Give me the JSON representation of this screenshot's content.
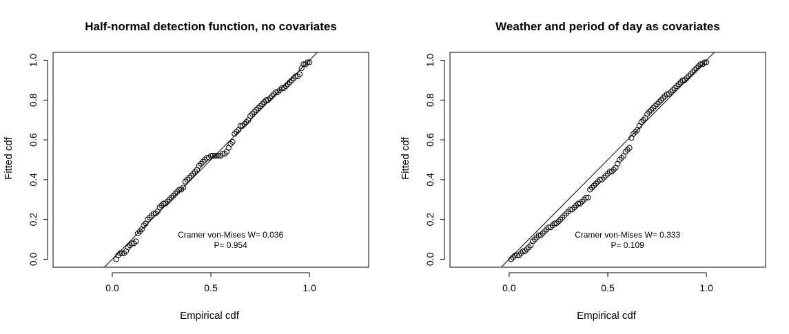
{
  "chart_data": [
    {
      "type": "scatter",
      "title": "Half-normal detection function, no covariates",
      "xlabel": "Empirical cdf",
      "ylabel": "Fitted cdf",
      "xlim": [
        -0.3,
        1.3
      ],
      "ylim": [
        -0.04,
        1.04
      ],
      "xticks": [
        "0.0",
        "0.5",
        "1.0"
      ],
      "yticks": [
        "0.0",
        "0.2",
        "0.4",
        "0.6",
        "0.8",
        "1.0"
      ],
      "reference_line": "y = x",
      "annotation": [
        "Cramer von-Mises W= 0.036",
        "P= 0.954"
      ],
      "series": [
        {
          "marker": "open-circle",
          "points": [
            [
              0.02,
              0.0
            ],
            [
              0.03,
              0.02
            ],
            [
              0.04,
              0.03
            ],
            [
              0.05,
              0.03
            ],
            [
              0.06,
              0.03
            ],
            [
              0.07,
              0.04
            ],
            [
              0.08,
              0.06
            ],
            [
              0.09,
              0.07
            ],
            [
              0.1,
              0.08
            ],
            [
              0.11,
              0.08
            ],
            [
              0.12,
              0.09
            ],
            [
              0.13,
              0.13
            ],
            [
              0.14,
              0.14
            ],
            [
              0.15,
              0.15
            ],
            [
              0.16,
              0.17
            ],
            [
              0.17,
              0.18
            ],
            [
              0.18,
              0.2
            ],
            [
              0.19,
              0.21
            ],
            [
              0.2,
              0.22
            ],
            [
              0.21,
              0.23
            ],
            [
              0.22,
              0.23
            ],
            [
              0.23,
              0.24
            ],
            [
              0.24,
              0.26
            ],
            [
              0.25,
              0.27
            ],
            [
              0.26,
              0.28
            ],
            [
              0.27,
              0.28
            ],
            [
              0.28,
              0.29
            ],
            [
              0.29,
              0.3
            ],
            [
              0.3,
              0.31
            ],
            [
              0.31,
              0.32
            ],
            [
              0.32,
              0.33
            ],
            [
              0.33,
              0.34
            ],
            [
              0.34,
              0.35
            ],
            [
              0.35,
              0.35
            ],
            [
              0.36,
              0.36
            ],
            [
              0.37,
              0.39
            ],
            [
              0.38,
              0.4
            ],
            [
              0.39,
              0.41
            ],
            [
              0.4,
              0.42
            ],
            [
              0.41,
              0.43
            ],
            [
              0.42,
              0.44
            ],
            [
              0.43,
              0.45
            ],
            [
              0.44,
              0.47
            ],
            [
              0.45,
              0.48
            ],
            [
              0.46,
              0.49
            ],
            [
              0.47,
              0.5
            ],
            [
              0.48,
              0.51
            ],
            [
              0.49,
              0.51
            ],
            [
              0.5,
              0.52
            ],
            [
              0.51,
              0.52
            ],
            [
              0.52,
              0.52
            ],
            [
              0.53,
              0.52
            ],
            [
              0.54,
              0.52
            ],
            [
              0.55,
              0.52
            ],
            [
              0.56,
              0.53
            ],
            [
              0.57,
              0.53
            ],
            [
              0.58,
              0.54
            ],
            [
              0.59,
              0.56
            ],
            [
              0.6,
              0.58
            ],
            [
              0.61,
              0.59
            ],
            [
              0.62,
              0.63
            ],
            [
              0.63,
              0.64
            ],
            [
              0.64,
              0.65
            ],
            [
              0.65,
              0.67
            ],
            [
              0.66,
              0.67
            ],
            [
              0.67,
              0.68
            ],
            [
              0.68,
              0.69
            ],
            [
              0.69,
              0.7
            ],
            [
              0.7,
              0.72
            ],
            [
              0.71,
              0.73
            ],
            [
              0.72,
              0.74
            ],
            [
              0.73,
              0.75
            ],
            [
              0.74,
              0.76
            ],
            [
              0.75,
              0.77
            ],
            [
              0.76,
              0.78
            ],
            [
              0.77,
              0.79
            ],
            [
              0.78,
              0.8
            ],
            [
              0.79,
              0.8
            ],
            [
              0.8,
              0.81
            ],
            [
              0.81,
              0.82
            ],
            [
              0.82,
              0.83
            ],
            [
              0.83,
              0.84
            ],
            [
              0.84,
              0.84
            ],
            [
              0.85,
              0.85
            ],
            [
              0.86,
              0.86
            ],
            [
              0.87,
              0.86
            ],
            [
              0.88,
              0.87
            ],
            [
              0.89,
              0.88
            ],
            [
              0.9,
              0.89
            ],
            [
              0.91,
              0.9
            ],
            [
              0.92,
              0.91
            ],
            [
              0.93,
              0.92
            ],
            [
              0.94,
              0.92
            ],
            [
              0.95,
              0.93
            ],
            [
              0.96,
              0.96
            ],
            [
              0.97,
              0.98
            ],
            [
              0.98,
              0.98
            ],
            [
              0.99,
              0.99
            ],
            [
              1.0,
              0.99
            ]
          ]
        }
      ]
    },
    {
      "type": "scatter",
      "title": "Weather and period of day as covariates",
      "xlabel": "Empirical cdf",
      "ylabel": "Fitted cdf",
      "xlim": [
        -0.3,
        1.3
      ],
      "ylim": [
        -0.04,
        1.04
      ],
      "xticks": [
        "0.0",
        "0.5",
        "1.0"
      ],
      "yticks": [
        "0.0",
        "0.2",
        "0.4",
        "0.6",
        "0.8",
        "1.0"
      ],
      "reference_line": "y = x",
      "annotation": [
        "Cramer von-Mises W= 0.333",
        "P= 0.109"
      ],
      "series": [
        {
          "marker": "open-circle",
          "points": [
            [
              0.01,
              0.0
            ],
            [
              0.02,
              0.01
            ],
            [
              0.03,
              0.02
            ],
            [
              0.04,
              0.02
            ],
            [
              0.05,
              0.02
            ],
            [
              0.06,
              0.03
            ],
            [
              0.07,
              0.04
            ],
            [
              0.08,
              0.04
            ],
            [
              0.09,
              0.05
            ],
            [
              0.1,
              0.06
            ],
            [
              0.11,
              0.07
            ],
            [
              0.12,
              0.09
            ],
            [
              0.13,
              0.1
            ],
            [
              0.14,
              0.11
            ],
            [
              0.15,
              0.12
            ],
            [
              0.16,
              0.12
            ],
            [
              0.17,
              0.13
            ],
            [
              0.18,
              0.14
            ],
            [
              0.19,
              0.15
            ],
            [
              0.2,
              0.16
            ],
            [
              0.21,
              0.16
            ],
            [
              0.22,
              0.17
            ],
            [
              0.23,
              0.18
            ],
            [
              0.24,
              0.18
            ],
            [
              0.25,
              0.19
            ],
            [
              0.26,
              0.2
            ],
            [
              0.27,
              0.21
            ],
            [
              0.28,
              0.22
            ],
            [
              0.29,
              0.23
            ],
            [
              0.3,
              0.24
            ],
            [
              0.31,
              0.25
            ],
            [
              0.32,
              0.25
            ],
            [
              0.33,
              0.26
            ],
            [
              0.34,
              0.27
            ],
            [
              0.35,
              0.28
            ],
            [
              0.36,
              0.28
            ],
            [
              0.37,
              0.29
            ],
            [
              0.38,
              0.3
            ],
            [
              0.39,
              0.31
            ],
            [
              0.4,
              0.31
            ],
            [
              0.41,
              0.35
            ],
            [
              0.42,
              0.36
            ],
            [
              0.43,
              0.37
            ],
            [
              0.44,
              0.38
            ],
            [
              0.45,
              0.39
            ],
            [
              0.46,
              0.4
            ],
            [
              0.47,
              0.4
            ],
            [
              0.48,
              0.41
            ],
            [
              0.49,
              0.42
            ],
            [
              0.5,
              0.43
            ],
            [
              0.51,
              0.44
            ],
            [
              0.52,
              0.44
            ],
            [
              0.53,
              0.45
            ],
            [
              0.54,
              0.46
            ],
            [
              0.55,
              0.48
            ],
            [
              0.56,
              0.5
            ],
            [
              0.57,
              0.51
            ],
            [
              0.58,
              0.52
            ],
            [
              0.59,
              0.54
            ],
            [
              0.6,
              0.55
            ],
            [
              0.61,
              0.56
            ],
            [
              0.62,
              0.61
            ],
            [
              0.63,
              0.63
            ],
            [
              0.64,
              0.64
            ],
            [
              0.65,
              0.65
            ],
            [
              0.66,
              0.67
            ],
            [
              0.67,
              0.69
            ],
            [
              0.68,
              0.7
            ],
            [
              0.69,
              0.71
            ],
            [
              0.7,
              0.73
            ],
            [
              0.71,
              0.74
            ],
            [
              0.72,
              0.75
            ],
            [
              0.73,
              0.76
            ],
            [
              0.74,
              0.77
            ],
            [
              0.75,
              0.78
            ],
            [
              0.76,
              0.79
            ],
            [
              0.77,
              0.8
            ],
            [
              0.78,
              0.81
            ],
            [
              0.79,
              0.82
            ],
            [
              0.8,
              0.83
            ],
            [
              0.81,
              0.83
            ],
            [
              0.82,
              0.84
            ],
            [
              0.83,
              0.85
            ],
            [
              0.84,
              0.86
            ],
            [
              0.85,
              0.87
            ],
            [
              0.86,
              0.88
            ],
            [
              0.87,
              0.89
            ],
            [
              0.88,
              0.9
            ],
            [
              0.89,
              0.9
            ],
            [
              0.9,
              0.91
            ],
            [
              0.91,
              0.92
            ],
            [
              0.92,
              0.93
            ],
            [
              0.93,
              0.94
            ],
            [
              0.94,
              0.95
            ],
            [
              0.95,
              0.96
            ],
            [
              0.96,
              0.97
            ],
            [
              0.97,
              0.98
            ],
            [
              0.98,
              0.98
            ],
            [
              0.99,
              0.99
            ],
            [
              1.0,
              0.99
            ]
          ]
        }
      ]
    }
  ]
}
